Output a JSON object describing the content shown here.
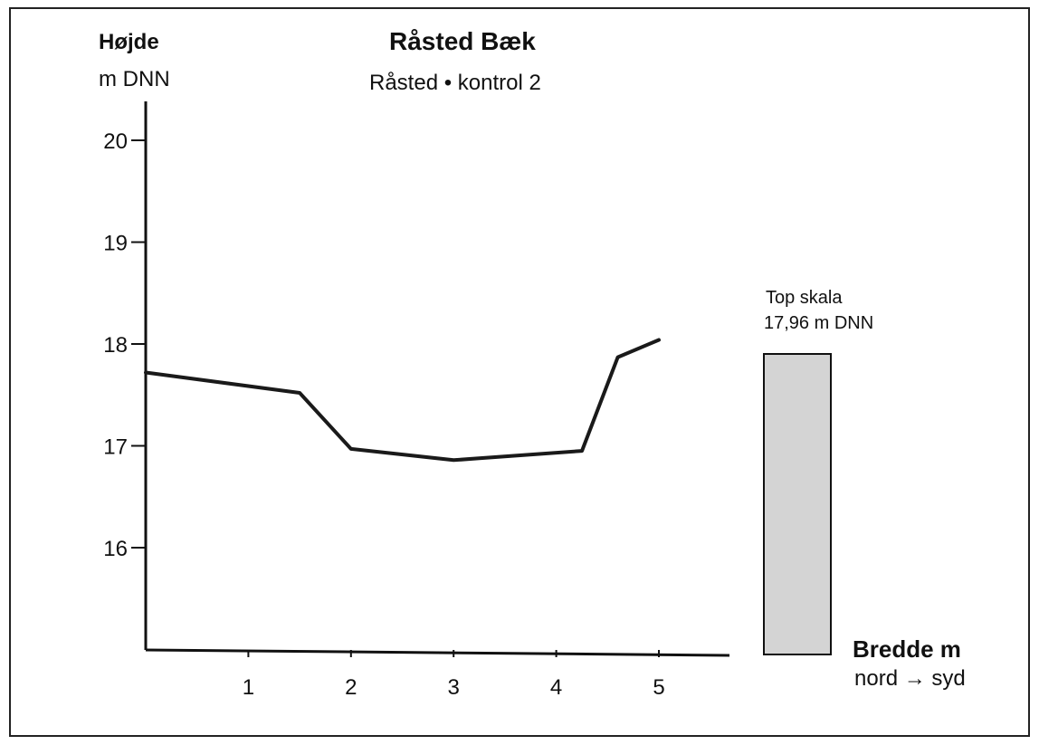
{
  "chart_data": {
    "type": "line",
    "title": "Råsted Bæk",
    "subtitle": "Råsted • kontrol 2",
    "ylabel": "Højde",
    "ylabel_unit": "m DNN",
    "xlabel": "Bredde m",
    "xlabel_direction": "nord → syd",
    "x_ticks": [
      1,
      2,
      3,
      4,
      5
    ],
    "y_ticks": [
      16,
      17,
      18,
      19,
      20
    ],
    "xlim": [
      0,
      6.2
    ],
    "ylim": [
      15,
      20.4
    ],
    "grid": false,
    "series": [
      {
        "x": [
          0.0,
          1.5,
          2.0,
          3.0,
          4.25,
          4.6,
          5.0
        ],
        "y": [
          17.72,
          17.52,
          16.97,
          16.86,
          16.95,
          17.87,
          18.04
        ]
      }
    ],
    "gauge": {
      "label": "Top skala",
      "value_text": "17,96 m DNN",
      "fill_color": "#d4d4d4"
    },
    "line_color": "#1a1a1a"
  }
}
